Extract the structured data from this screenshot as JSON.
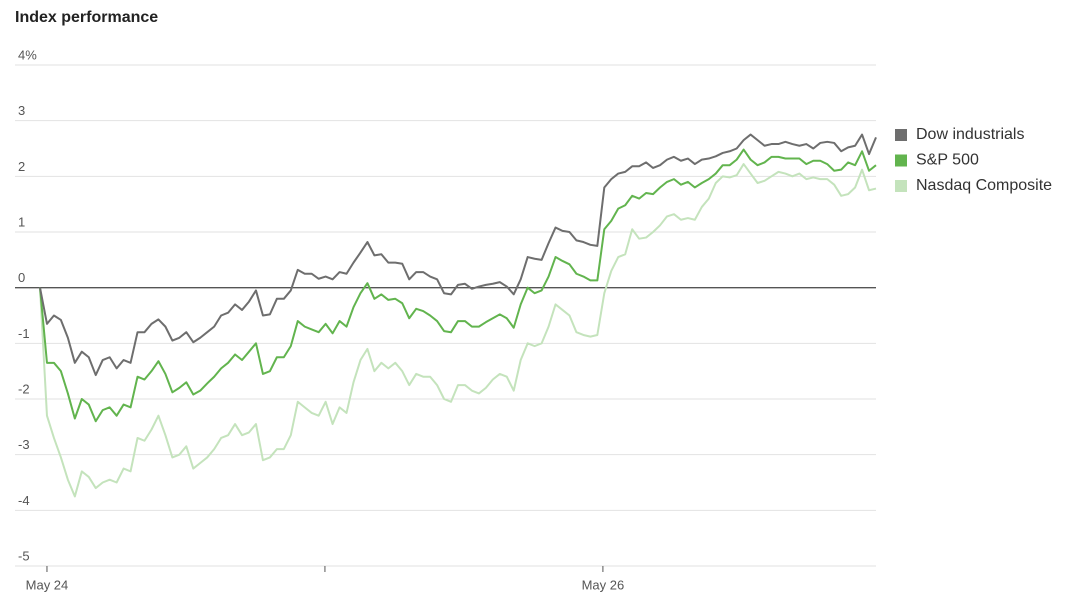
{
  "chart_data": {
    "type": "line",
    "title": "Index performance",
    "ylim": [
      -5,
      4
    ],
    "yticks": [
      {
        "value": 4,
        "label": "4%"
      },
      3,
      2,
      1,
      0,
      -1,
      -2,
      -3,
      -4,
      -5
    ],
    "xlim": [
      0,
      120
    ],
    "xticks": [
      {
        "value": 1,
        "label": "May 24"
      },
      {
        "value": 80.8,
        "label": "May 26"
      }
    ],
    "xminorticks": [
      40.9
    ],
    "grid": true,
    "legend": "right",
    "series": [
      {
        "name": "Dow industrials",
        "color": "#6e6e6e",
        "values": [
          0,
          -0.65,
          -0.5,
          -0.58,
          -0.9,
          -1.35,
          -1.15,
          -1.25,
          -1.57,
          -1.3,
          -1.25,
          -1.45,
          -1.3,
          -1.35,
          -0.8,
          -0.8,
          -0.65,
          -0.57,
          -0.7,
          -0.95,
          -0.9,
          -0.8,
          -0.98,
          -0.9,
          -0.8,
          -0.7,
          -0.5,
          -0.45,
          -0.3,
          -0.4,
          -0.25,
          -0.05,
          -0.5,
          -0.48,
          -0.2,
          -0.2,
          -0.05,
          0.32,
          0.25,
          0.25,
          0.16,
          0.2,
          0.15,
          0.28,
          0.25,
          0.45,
          0.63,
          0.82,
          0.58,
          0.6,
          0.45,
          0.45,
          0.43,
          0.15,
          0.28,
          0.28,
          0.2,
          0.15,
          -0.1,
          -0.12,
          0.05,
          0.07,
          -0.02,
          0.02,
          0.05,
          0.07,
          0.1,
          0.02,
          -0.12,
          0.15,
          0.55,
          0.52,
          0.5,
          0.8,
          1.08,
          1.02,
          1.0,
          0.85,
          0.82,
          0.77,
          0.75,
          1.8,
          1.95,
          2.05,
          2.08,
          2.18,
          2.18,
          2.25,
          2.15,
          2.2,
          2.3,
          2.35,
          2.28,
          2.32,
          2.22,
          2.3,
          2.32,
          2.36,
          2.42,
          2.45,
          2.5,
          2.65,
          2.75,
          2.65,
          2.55,
          2.58,
          2.58,
          2.62,
          2.58,
          2.55,
          2.58,
          2.5,
          2.6,
          2.62,
          2.6,
          2.45,
          2.52,
          2.55,
          2.75,
          2.4,
          2.7
        ]
      },
      {
        "name": "S&P 500",
        "color": "#62b44e",
        "values": [
          0,
          -1.35,
          -1.35,
          -1.5,
          -1.9,
          -2.35,
          -2.0,
          -2.1,
          -2.4,
          -2.2,
          -2.15,
          -2.3,
          -2.1,
          -2.15,
          -1.6,
          -1.65,
          -1.5,
          -1.32,
          -1.55,
          -1.88,
          -1.8,
          -1.7,
          -1.92,
          -1.85,
          -1.72,
          -1.6,
          -1.45,
          -1.35,
          -1.2,
          -1.3,
          -1.15,
          -1.0,
          -1.55,
          -1.5,
          -1.25,
          -1.25,
          -1.05,
          -0.6,
          -0.7,
          -0.75,
          -0.8,
          -0.65,
          -0.82,
          -0.6,
          -0.7,
          -0.35,
          -0.1,
          0.08,
          -0.2,
          -0.12,
          -0.22,
          -0.2,
          -0.28,
          -0.55,
          -0.38,
          -0.42,
          -0.5,
          -0.6,
          -0.78,
          -0.8,
          -0.6,
          -0.6,
          -0.7,
          -0.7,
          -0.62,
          -0.55,
          -0.48,
          -0.55,
          -0.72,
          -0.3,
          0.0,
          -0.1,
          -0.05,
          0.2,
          0.55,
          0.48,
          0.42,
          0.25,
          0.2,
          0.13,
          0.13,
          1.05,
          1.2,
          1.42,
          1.48,
          1.65,
          1.6,
          1.7,
          1.68,
          1.8,
          1.9,
          1.95,
          1.85,
          1.9,
          1.8,
          1.88,
          1.95,
          2.05,
          2.2,
          2.2,
          2.3,
          2.48,
          2.3,
          2.2,
          2.25,
          2.35,
          2.35,
          2.32,
          2.32,
          2.32,
          2.22,
          2.28,
          2.28,
          2.22,
          2.1,
          2.12,
          2.25,
          2.2,
          2.45,
          2.1,
          2.2
        ]
      },
      {
        "name": "Nasdaq Composite",
        "color": "#c4e3bc",
        "values": [
          0,
          -2.3,
          -2.7,
          -3.05,
          -3.45,
          -3.75,
          -3.3,
          -3.4,
          -3.6,
          -3.5,
          -3.45,
          -3.5,
          -3.25,
          -3.3,
          -2.7,
          -2.75,
          -2.55,
          -2.3,
          -2.65,
          -3.05,
          -3.0,
          -2.85,
          -3.25,
          -3.15,
          -3.05,
          -2.9,
          -2.7,
          -2.65,
          -2.45,
          -2.65,
          -2.6,
          -2.45,
          -3.1,
          -3.05,
          -2.9,
          -2.9,
          -2.65,
          -2.05,
          -2.15,
          -2.25,
          -2.3,
          -2.05,
          -2.45,
          -2.15,
          -2.25,
          -1.7,
          -1.3,
          -1.1,
          -1.5,
          -1.35,
          -1.45,
          -1.35,
          -1.5,
          -1.75,
          -1.55,
          -1.6,
          -1.6,
          -1.75,
          -2.0,
          -2.05,
          -1.75,
          -1.75,
          -1.85,
          -1.9,
          -1.8,
          -1.65,
          -1.55,
          -1.6,
          -1.85,
          -1.3,
          -1.0,
          -1.05,
          -1.0,
          -0.7,
          -0.3,
          -0.4,
          -0.5,
          -0.8,
          -0.85,
          -0.88,
          -0.85,
          -0.1,
          0.3,
          0.55,
          0.6,
          1.05,
          0.88,
          0.9,
          1.0,
          1.12,
          1.28,
          1.32,
          1.22,
          1.25,
          1.22,
          1.45,
          1.6,
          1.88,
          2.0,
          1.98,
          2.02,
          2.22,
          2.05,
          1.88,
          1.92,
          2.0,
          2.08,
          2.05,
          2.0,
          2.05,
          1.95,
          1.98,
          1.95,
          1.95,
          1.85,
          1.65,
          1.68,
          1.8,
          2.12,
          1.75,
          1.78
        ]
      }
    ]
  }
}
